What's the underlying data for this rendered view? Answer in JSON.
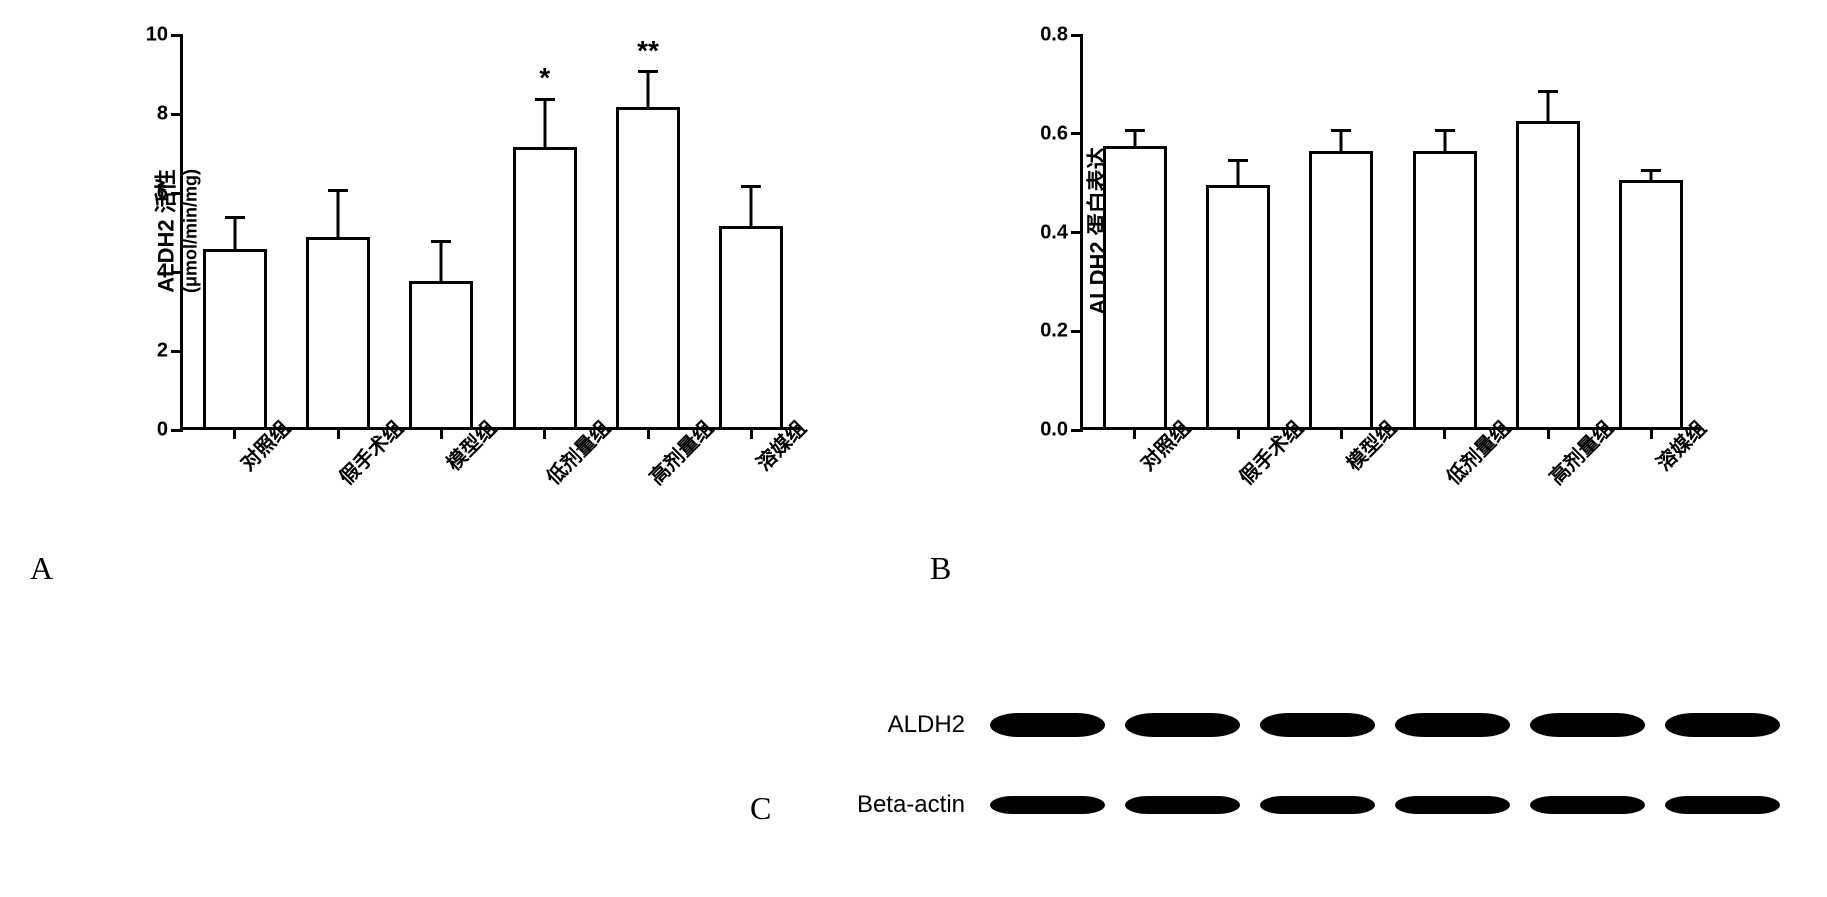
{
  "chart_a": {
    "type": "bar",
    "ylabel": "ALDH2 活性",
    "ylabel_sub": "(μmol/min/mg)",
    "ylabel_fontsize": 22,
    "ylim": [
      0,
      10
    ],
    "ytick_step": 2,
    "yticks": [
      0,
      2,
      4,
      6,
      8,
      10
    ],
    "categories": [
      "对照组",
      "假手术组",
      "模型组",
      "低剂量组",
      "高剂量组",
      "溶媒组"
    ],
    "values": [
      4.5,
      4.8,
      3.7,
      7.1,
      8.1,
      5.1
    ],
    "errors": [
      0.8,
      1.2,
      1.0,
      1.2,
      0.9,
      1.0
    ],
    "significance": [
      "",
      "",
      "",
      "*",
      "**",
      ""
    ],
    "bar_color": "#ffffff",
    "bar_border": "#000000",
    "bar_width": 0.62,
    "background_color": "#ffffff",
    "tick_fontsize": 20,
    "xlabel_fontsize": 20,
    "xlabel_rotation": -45
  },
  "chart_b": {
    "type": "bar",
    "ylabel": "ALDH2 蛋白表达",
    "ylabel_fontsize": 22,
    "ylim": [
      0.0,
      0.8
    ],
    "ytick_step": 0.2,
    "yticks": [
      "0.0",
      "0.2",
      "0.4",
      "0.6",
      "0.8"
    ],
    "ytick_values": [
      0.0,
      0.2,
      0.4,
      0.6,
      0.8
    ],
    "categories": [
      "对照组",
      "假手术组",
      "模型组",
      "低剂量组",
      "高剂量组",
      "溶媒组"
    ],
    "values": [
      0.57,
      0.49,
      0.56,
      0.56,
      0.62,
      0.5
    ],
    "errors": [
      0.03,
      0.05,
      0.04,
      0.04,
      0.06,
      0.02
    ],
    "significance": [
      "",
      "",
      "",
      "",
      "",
      ""
    ],
    "bar_color": "#ffffff",
    "bar_border": "#000000",
    "bar_width": 0.62,
    "background_color": "#ffffff",
    "tick_fontsize": 20,
    "xlabel_fontsize": 20,
    "xlabel_rotation": -45
  },
  "panel_labels": {
    "a": "A",
    "b": "B",
    "c": "C"
  },
  "blot": {
    "rows": [
      {
        "label": "ALDH2",
        "band_style": "thick"
      },
      {
        "label": "Beta-actin",
        "band_style": "thin"
      }
    ],
    "lanes": 6,
    "band_color": "#000000",
    "label_fontsize": 24
  }
}
